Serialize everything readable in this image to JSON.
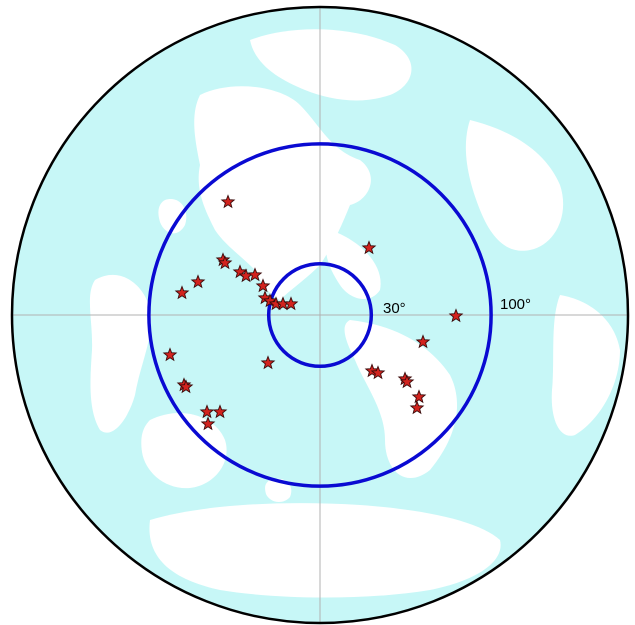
{
  "map": {
    "colors": {
      "ocean": "#c7f7f7",
      "land": "#ffffff",
      "ring": "#0a0ad2",
      "outline": "#000000",
      "axis": "#b0b0b0",
      "event_fill": "#d2231e",
      "event_stroke": "#3a0a0a"
    },
    "rings": [
      {
        "distance_deg": 30,
        "label": "30°"
      },
      {
        "distance_deg": 100,
        "label": "100°"
      }
    ],
    "max_distance_deg": 180,
    "event_marker": "star-icon",
    "event_count": 40
  }
}
